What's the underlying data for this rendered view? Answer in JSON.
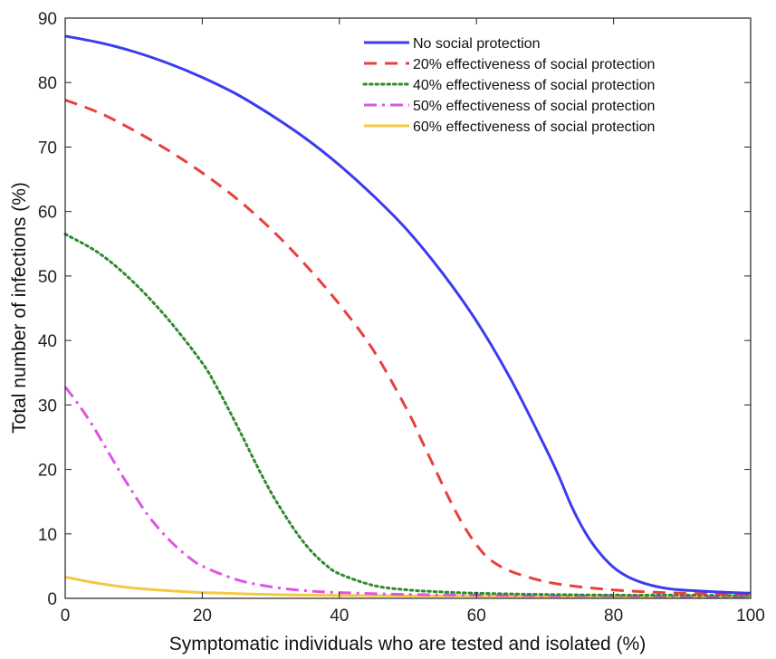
{
  "chart_data": {
    "type": "line",
    "title": "",
    "xlabel": "Symptomatic individuals who are tested and isolated (%)",
    "ylabel": "Total number of infections (%)",
    "xlim": [
      0,
      100
    ],
    "ylim": [
      0,
      90
    ],
    "xticks": [
      0,
      20,
      40,
      60,
      80,
      100
    ],
    "yticks": [
      0,
      10,
      20,
      30,
      40,
      50,
      60,
      70,
      80,
      90
    ],
    "grid": false,
    "legend_position": "top-right",
    "series": [
      {
        "name": "No social protection",
        "color": "#3b3bf0",
        "dash": "solid",
        "x": [
          0,
          5,
          10,
          15,
          20,
          25,
          30,
          35,
          40,
          45,
          50,
          55,
          60,
          65,
          70,
          72,
          74,
          76,
          78,
          80,
          82,
          84,
          86,
          88,
          90,
          95,
          100
        ],
        "y": [
          87.2,
          86.2,
          84.8,
          83.0,
          80.8,
          78.2,
          75.0,
          71.4,
          67.2,
          62.4,
          57.0,
          50.5,
          43.0,
          34.0,
          23.5,
          19.0,
          14.0,
          10.0,
          7.0,
          4.8,
          3.4,
          2.5,
          1.9,
          1.5,
          1.3,
          1.0,
          0.8
        ]
      },
      {
        "name": "20% effectiveness of social protection",
        "color": "#e8403c",
        "dash": "dashed",
        "x": [
          0,
          5,
          10,
          15,
          20,
          25,
          30,
          35,
          40,
          45,
          50,
          52,
          54,
          56,
          58,
          60,
          62,
          65,
          70,
          75,
          80,
          85,
          90,
          95,
          100
        ],
        "y": [
          77.3,
          75.3,
          72.6,
          69.5,
          66.0,
          62.0,
          57.3,
          51.8,
          45.6,
          38.4,
          29.0,
          24.5,
          20.0,
          15.5,
          11.5,
          8.3,
          6.0,
          4.2,
          2.6,
          1.8,
          1.3,
          1.0,
          0.8,
          0.7,
          0.6
        ]
      },
      {
        "name": "40% effectiveness of social protection",
        "color": "#2e8b2e",
        "dash": "dotted",
        "x": [
          0,
          5,
          10,
          15,
          20,
          22,
          24,
          26,
          28,
          30,
          32,
          34,
          36,
          38,
          40,
          45,
          50,
          55,
          60,
          70,
          80,
          90,
          100
        ],
        "y": [
          56.5,
          53.5,
          49.0,
          43.3,
          36.5,
          33.0,
          29.0,
          24.8,
          20.5,
          16.5,
          13.0,
          9.8,
          7.2,
          5.2,
          3.8,
          2.0,
          1.3,
          1.0,
          0.8,
          0.6,
          0.5,
          0.5,
          0.4
        ]
      },
      {
        "name": "50% effectiveness of social protection",
        "color": "#dd55e6",
        "dash": "dashdot",
        "x": [
          0,
          2,
          4,
          6,
          8,
          10,
          12,
          14,
          16,
          18,
          20,
          25,
          30,
          35,
          40,
          50,
          60,
          70,
          80,
          90,
          100
        ],
        "y": [
          32.8,
          30.0,
          26.8,
          23.2,
          19.6,
          16.2,
          13.0,
          10.4,
          8.2,
          6.4,
          5.0,
          2.9,
          1.8,
          1.2,
          0.9,
          0.6,
          0.5,
          0.4,
          0.4,
          0.3,
          0.3
        ]
      },
      {
        "name": "60% effectiveness of social protection",
        "color": "#f5c842",
        "dash": "solid",
        "x": [
          0,
          5,
          10,
          15,
          20,
          30,
          40,
          50,
          60,
          70,
          80,
          90,
          100
        ],
        "y": [
          3.3,
          2.3,
          1.6,
          1.2,
          0.9,
          0.6,
          0.45,
          0.4,
          0.35,
          0.3,
          0.3,
          0.25,
          0.25
        ]
      }
    ]
  }
}
